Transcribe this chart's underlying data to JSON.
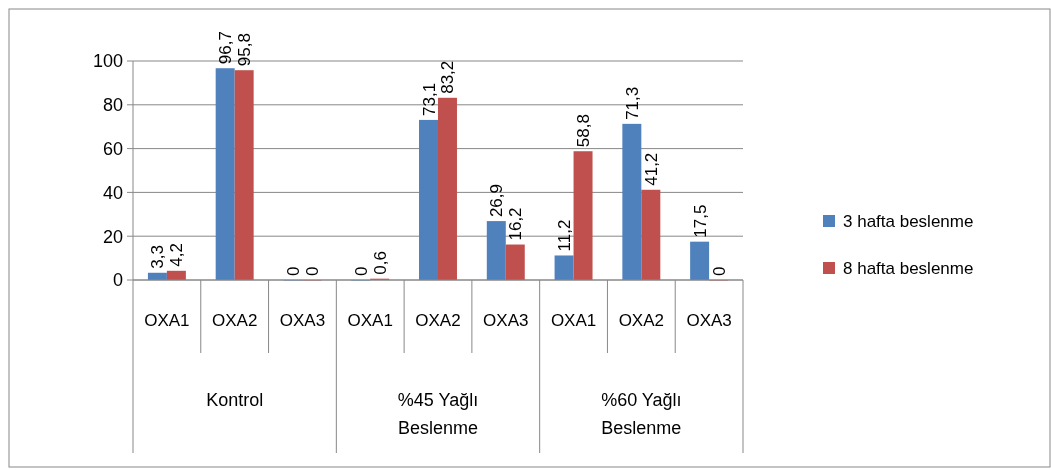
{
  "chart_data": {
    "type": "bar",
    "categories": [
      "OXA1",
      "OXA2",
      "OXA3",
      "OXA1",
      "OXA2",
      "OXA3",
      "OXA1",
      "OXA2",
      "OXA3"
    ],
    "annotations": [
      "Kontrol",
      "%45 Yağlı Beslenme",
      "%60 Yağlı Beslenme"
    ],
    "series": [
      {
        "name": "3 hafta beslenme",
        "color": "#4f81bd",
        "values": [
          3.3,
          96.7,
          0,
          0,
          73.1,
          26.9,
          11.2,
          71.3,
          17.5
        ],
        "value_labels": [
          "3,3",
          "96,7",
          "0",
          "0",
          "73,1",
          "26,9",
          "11,2",
          "71,3",
          "17,5"
        ]
      },
      {
        "name": "8 hafta beslenme",
        "color": "#c0504d",
        "values": [
          4.2,
          95.8,
          0,
          0.6,
          83.2,
          16.2,
          58.8,
          41.2,
          0
        ],
        "value_labels": [
          "4,2",
          "95,8",
          "0",
          "0,6",
          "83,2",
          "16,2",
          "58,8",
          "41,2",
          "0"
        ]
      }
    ],
    "ylim": [
      0,
      100
    ],
    "yticks": [
      0,
      20,
      40,
      60,
      80,
      100
    ],
    "grid": "y",
    "legend": "right"
  }
}
